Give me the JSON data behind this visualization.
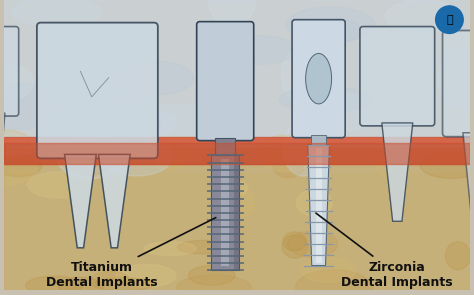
{
  "label_titanium": "Titanium\nDental Implants",
  "label_zirconia": "Zirconia\nDental Implants",
  "text_color": "#111111",
  "font_size": 9,
  "bg_upper_color": "#d4dce4",
  "bg_bone_color": "#c8b47a",
  "gum_color": "#c85030",
  "tooth_fill": "#ccd8e0",
  "tooth_edge": "#334455",
  "ti_screw_fill": "#909098",
  "ti_screw_edge": "#445566",
  "zr_screw_fill": "#c8d4dc",
  "zr_screw_edge": "#667788",
  "logo_color": "#1a6aaa"
}
